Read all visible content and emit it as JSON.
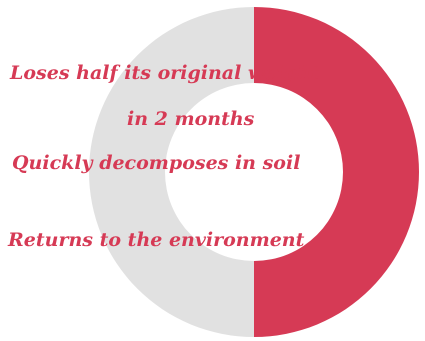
{
  "chart_data": {
    "type": "pie",
    "slices": [
      {
        "value": 50,
        "color": "#d63a55"
      },
      {
        "value": 50,
        "color": "#e1e1e1"
      }
    ]
  },
  "labels": {
    "line1": "Loses half its original weight",
    "line2": "in 2 months",
    "line3": "Quickly decomposes in soil",
    "line4": "Returns to the  environment"
  },
  "colors": {
    "accent": "#d63a55",
    "track": "#e1e1e1"
  }
}
